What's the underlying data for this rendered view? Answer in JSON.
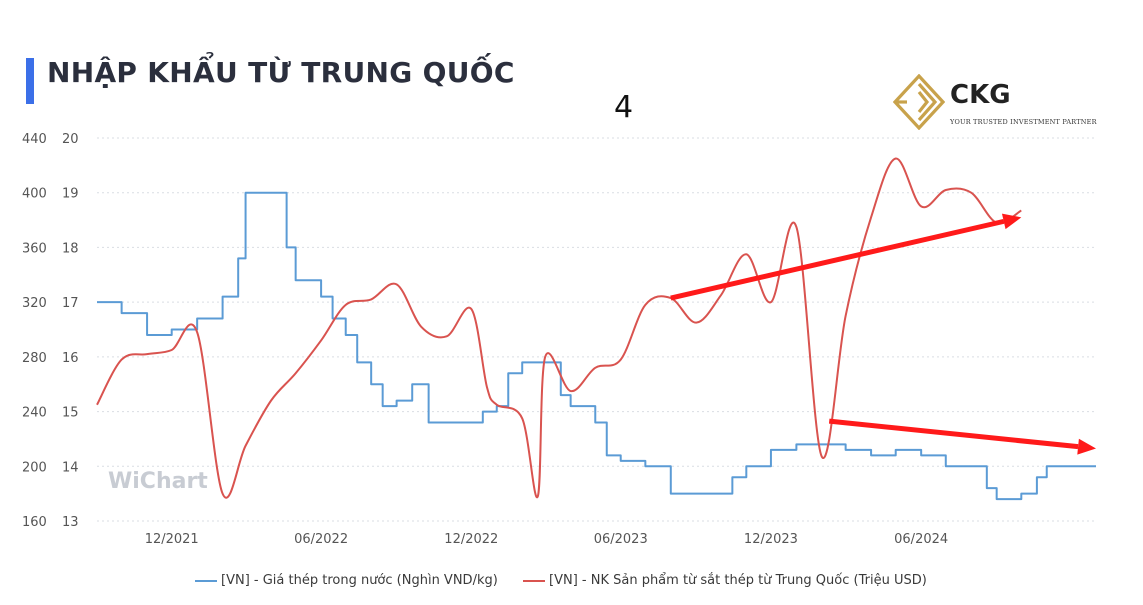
{
  "title": "NHẬP KHẨU TỪ TRUNG QUỐC",
  "page_number": "4",
  "logo": {
    "name": "CKG",
    "tagline": "YOUR TRUSTED INVESTMENT PARTNER",
    "icon": "ckg-diamond-logo-icon",
    "color": "#c8a24b"
  },
  "watermark": "WiChart",
  "colors": {
    "steel_price": "#5b9bd5",
    "imports": "#d9534f",
    "arrow": "#ff1a1a",
    "accent": "#3b6fe8"
  },
  "chart_data": {
    "type": "line",
    "x_tick_labels": [
      "12/2021",
      "06/2022",
      "12/2022",
      "06/2023",
      "12/2023",
      "06/2024"
    ],
    "left_axis": {
      "ticks": [
        160,
        200,
        240,
        280,
        320,
        360,
        400,
        440
      ],
      "ylim": [
        160,
        440
      ]
    },
    "right_axis": {
      "ticks": [
        13,
        14,
        15,
        16,
        17,
        18,
        19,
        20
      ],
      "ylim": [
        13,
        20
      ]
    },
    "grid": true,
    "legend_position": "bottom",
    "series": [
      {
        "name": "[VN] - Giá thép trong nước (Nghìn VND/kg)",
        "axis": "right",
        "step": true,
        "points": [
          [
            "2021-09",
            17.0
          ],
          [
            "2021-10",
            16.8
          ],
          [
            "2021-11",
            16.4
          ],
          [
            "2021-12",
            16.5
          ],
          [
            "2022-01",
            16.7
          ],
          [
            "2022-02",
            17.1
          ],
          [
            "2022-02-20",
            17.8
          ],
          [
            "2022-03",
            19.0
          ],
          [
            "2022-04",
            19.0
          ],
          [
            "2022-04-20",
            18.0
          ],
          [
            "2022-05",
            17.4
          ],
          [
            "2022-06",
            17.1
          ],
          [
            "2022-06-15",
            16.7
          ],
          [
            "2022-07",
            16.4
          ],
          [
            "2022-07-15",
            15.9
          ],
          [
            "2022-08",
            15.5
          ],
          [
            "2022-08-15",
            15.1
          ],
          [
            "2022-09",
            15.2
          ],
          [
            "2022-09-20",
            15.5
          ],
          [
            "2022-10",
            15.5
          ],
          [
            "2022-10-10",
            14.8
          ],
          [
            "2022-11",
            14.8
          ],
          [
            "2022-12",
            14.8
          ],
          [
            "2022-12-15",
            15.0
          ],
          [
            "2023-01",
            15.1
          ],
          [
            "2023-01-15",
            15.7
          ],
          [
            "2023-02",
            15.9
          ],
          [
            "2023-03",
            15.9
          ],
          [
            "2023-03-20",
            15.3
          ],
          [
            "2023-04",
            15.1
          ],
          [
            "2023-05",
            14.8
          ],
          [
            "2023-05-15",
            14.2
          ],
          [
            "2023-06",
            14.1
          ],
          [
            "2023-07",
            14.0
          ],
          [
            "2023-08",
            13.5
          ],
          [
            "2023-09",
            13.5
          ],
          [
            "2023-10",
            13.5
          ],
          [
            "2023-10-15",
            13.8
          ],
          [
            "2023-11",
            14.0
          ],
          [
            "2023-12",
            14.3
          ],
          [
            "2024-01",
            14.4
          ],
          [
            "2024-02",
            14.4
          ],
          [
            "2024-03",
            14.3
          ],
          [
            "2024-04",
            14.2
          ],
          [
            "2024-05",
            14.3
          ],
          [
            "2024-06",
            14.2
          ],
          [
            "2024-07",
            14.0
          ],
          [
            "2024-08",
            14.0
          ],
          [
            "2024-08-20",
            13.6
          ],
          [
            "2024-09",
            13.4
          ],
          [
            "2024-10",
            13.5
          ],
          [
            "2024-10-20",
            13.8
          ],
          [
            "2024-11",
            14.0
          ],
          [
            "2024-12",
            14.0
          ]
        ]
      },
      {
        "name": "[VN] - NK Sản phẩm từ sắt thép từ Trung Quốc (Triệu USD)",
        "axis": "left",
        "step": false,
        "points": [
          [
            "2021-09",
            245
          ],
          [
            "2021-10",
            278
          ],
          [
            "2021-11",
            282
          ],
          [
            "2021-12",
            285
          ],
          [
            "2022-01",
            298
          ],
          [
            "2022-02",
            180
          ],
          [
            "2022-03",
            215
          ],
          [
            "2022-04",
            248
          ],
          [
            "2022-05",
            268
          ],
          [
            "2022-06",
            292
          ],
          [
            "2022-07",
            318
          ],
          [
            "2022-08",
            322
          ],
          [
            "2022-09",
            333
          ],
          [
            "2022-10",
            302
          ],
          [
            "2022-11",
            295
          ],
          [
            "2022-12",
            315
          ],
          [
            "2022-12-20",
            258
          ],
          [
            "2023-01",
            245
          ],
          [
            "2023-02",
            235
          ],
          [
            "2023-02-20",
            178
          ],
          [
            "2023-03",
            280
          ],
          [
            "2023-04",
            255
          ],
          [
            "2023-05",
            272
          ],
          [
            "2023-06",
            278
          ],
          [
            "2023-07",
            318
          ],
          [
            "2023-08",
            323
          ],
          [
            "2023-09",
            305
          ],
          [
            "2023-10",
            325
          ],
          [
            "2023-11",
            355
          ],
          [
            "2023-12",
            320
          ],
          [
            "2024-01",
            375
          ],
          [
            "2024-02",
            207
          ],
          [
            "2024-03",
            310
          ],
          [
            "2024-04",
            382
          ],
          [
            "2024-05",
            425
          ],
          [
            "2024-06",
            390
          ],
          [
            "2024-07",
            402
          ],
          [
            "2024-08",
            400
          ],
          [
            "2024-09",
            378
          ],
          [
            "2024-10",
            387
          ]
        ]
      }
    ],
    "annotations": [
      {
        "type": "arrow",
        "from": [
          "2023-08",
          323
        ],
        "to": [
          "2024-10",
          382
        ],
        "axis": "left"
      },
      {
        "type": "arrow",
        "from": [
          "2024-02-10",
          233
        ],
        "to": [
          "2024-12-31",
          213
        ],
        "axis": "left"
      }
    ]
  }
}
